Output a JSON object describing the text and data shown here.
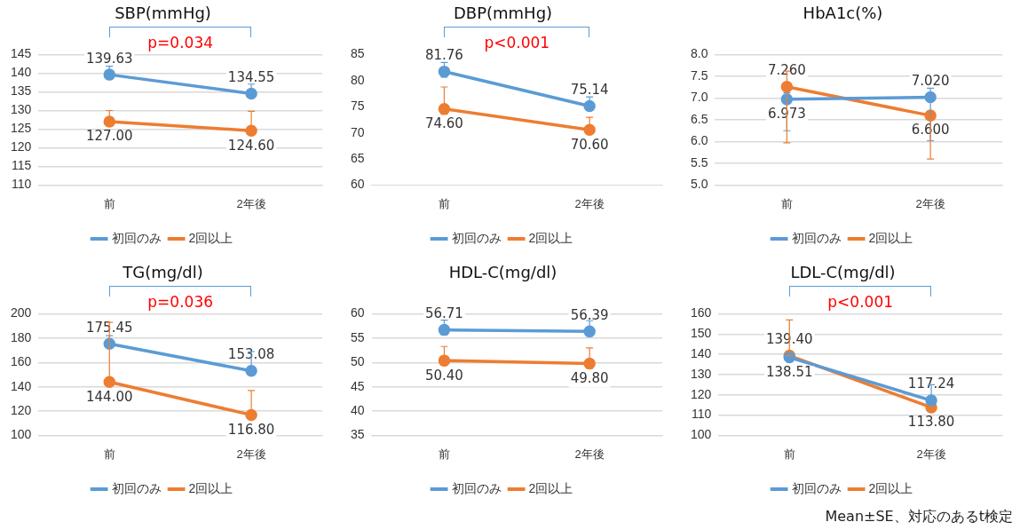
{
  "chart_data": [
    {
      "type": "line",
      "title": "SBP(mmHg)",
      "categories": [
        "前",
        "2年後"
      ],
      "marker": "circle",
      "grid": "y",
      "legend": "bottom",
      "ylim": [
        110,
        145
      ],
      "yticks": [
        110,
        115,
        120,
        125,
        130,
        135,
        140,
        145
      ],
      "annotations": [
        "p=0.034"
      ],
      "series": [
        {
          "name": "初回のみ",
          "color": "#5b9bd5",
          "values": [
            139.63,
            134.55
          ],
          "value_labels": [
            "139.63",
            "134.55"
          ],
          "errors": [
            [
              138.6,
              141.9
            ],
            [
              133.9,
              137.1
            ]
          ]
        },
        {
          "name": "2回以上",
          "color": "#ed7d31",
          "values": [
            127.0,
            124.6
          ],
          "value_labels": [
            "127.00",
            "124.60"
          ],
          "errors": [
            [
              125.9,
              130.0
            ],
            [
              123.9,
              129.8
            ]
          ]
        }
      ]
    },
    {
      "type": "line",
      "title": "DBP(mmHg)",
      "categories": [
        "前",
        "2年後"
      ],
      "marker": "circle",
      "grid": false,
      "legend": "bottom",
      "ylim": [
        60,
        85
      ],
      "yticks": [
        60,
        65,
        70,
        75,
        80,
        85
      ],
      "annotations": [
        "p<0.001"
      ],
      "series": [
        {
          "name": "初回のみ",
          "color": "#5b9bd5",
          "values": [
            81.76,
            75.14
          ],
          "value_labels": [
            "81.76",
            "75.14"
          ],
          "errors": [
            [
              80.7,
              83.5
            ],
            [
              74.3,
              76.9
            ]
          ]
        },
        {
          "name": "2回以上",
          "color": "#ed7d31",
          "values": [
            74.6,
            70.6
          ],
          "value_labels": [
            "74.60",
            "70.60"
          ],
          "errors": [
            [
              73.6,
              78.8
            ],
            [
              69.8,
              73.0
            ]
          ]
        }
      ]
    },
    {
      "type": "line",
      "title": "HbA1c(%)",
      "categories": [
        "前",
        "2年後"
      ],
      "marker": "circle",
      "grid": "y",
      "legend": "bottom",
      "ylim": [
        5,
        8
      ],
      "yticks": [
        {
          "value": 5,
          "label": "5.0"
        },
        {
          "value": 5.5,
          "label": "5.5"
        },
        {
          "value": 6,
          "label": "6.0"
        },
        {
          "value": 6.5,
          "label": "6.5"
        },
        {
          "value": 7,
          "label": "7.0"
        },
        {
          "value": 7.5,
          "label": "7.5"
        },
        {
          "value": 8,
          "label": "8.0"
        }
      ],
      "series": [
        {
          "name": "初回のみ",
          "color": "#5b9bd5",
          "values": [
            6.973,
            7.02
          ],
          "value_labels": [
            "6.973",
            "7.020"
          ],
          "errors": [
            [
              6.25,
              7.12
            ],
            [
              6.02,
              7.23
            ]
          ]
        },
        {
          "name": "2回以上",
          "color": "#ed7d31",
          "values": [
            7.26,
            6.6
          ],
          "value_labels": [
            "7.260",
            "6.600"
          ],
          "errors": [
            [
              5.97,
              7.62
            ],
            [
              5.6,
              6.6
            ]
          ]
        }
      ]
    },
    {
      "type": "line",
      "title": "TG(mg/dl)",
      "categories": [
        "前",
        "2年後"
      ],
      "marker": "circle",
      "grid": "y",
      "legend": "bottom",
      "ylim": [
        100,
        200
      ],
      "yticks": [
        100,
        120,
        140,
        160,
        180,
        200
      ],
      "annotations": [
        "p=0.036"
      ],
      "series": [
        {
          "name": "初回のみ",
          "color": "#5b9bd5",
          "values": [
            175.45,
            153.08
          ],
          "value_labels": [
            "175.45",
            "153.08"
          ],
          "errors": [
            [
              175.45,
              182
            ],
            [
              153.08,
              169
            ]
          ]
        },
        {
          "name": "2回以上",
          "color": "#ed7d31",
          "values": [
            144.0,
            116.8
          ],
          "value_labels": [
            "144.00",
            "116.80"
          ],
          "errors": [
            [
              144.0,
              193
            ],
            [
              116.8,
              137
            ]
          ]
        }
      ]
    },
    {
      "type": "line",
      "title": "HDL-C(mg/dl)",
      "categories": [
        "前",
        "2年後"
      ],
      "marker": "circle",
      "grid": "y",
      "legend": "bottom",
      "ylim": [
        35,
        60
      ],
      "yticks": [
        35,
        40,
        45,
        50,
        55,
        60
      ],
      "series": [
        {
          "name": "初回のみ",
          "color": "#5b9bd5",
          "values": [
            56.71,
            56.39
          ],
          "value_labels": [
            "56.71",
            "56.39"
          ],
          "errors": [
            [
              55.7,
              58.7
            ],
            [
              55.4,
              58.6
            ]
          ]
        },
        {
          "name": "2回以上",
          "color": "#ed7d31",
          "values": [
            50.4,
            49.8
          ],
          "value_labels": [
            "50.40",
            "49.80"
          ],
          "errors": [
            [
              49.4,
              53.3
            ],
            [
              48.8,
              53.0
            ]
          ]
        }
      ]
    },
    {
      "type": "line",
      "title": "LDL-C(mg/dl)",
      "categories": [
        "前",
        "2年後"
      ],
      "marker": "circle",
      "grid": "y",
      "legend": "bottom",
      "ylim": [
        100,
        160
      ],
      "yticks": [
        100,
        110,
        120,
        130,
        140,
        150,
        160
      ],
      "annotations": [
        "p<0.001",
        "Mean±SE、対応のあるt検定"
      ],
      "series": [
        {
          "name": "初回のみ",
          "color": "#5b9bd5",
          "values": [
            138.51,
            117.24
          ],
          "value_labels": [
            "138.51",
            "117.24"
          ],
          "errors": [
            null,
            [
              117.24,
              125
            ]
          ]
        },
        {
          "name": "2回以上",
          "color": "#ed7d31",
          "values": [
            139.4,
            113.8
          ],
          "value_labels": [
            "139.40",
            "113.80"
          ],
          "errors": [
            [
              139.4,
              157
            ],
            null
          ]
        }
      ]
    }
  ]
}
